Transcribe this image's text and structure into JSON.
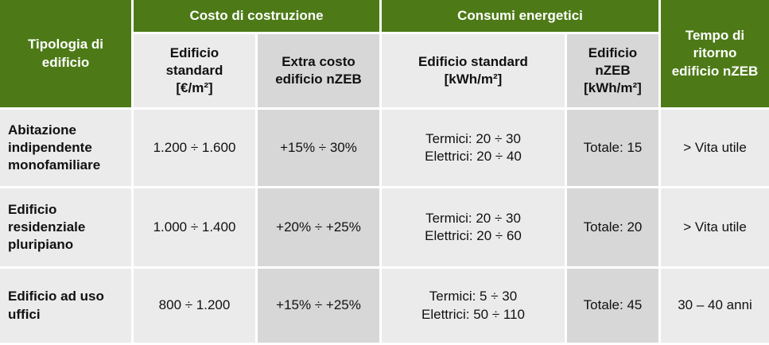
{
  "table": {
    "header_group": {
      "typology": "Tipologia di\nedificio",
      "construction_cost": "Costo di costruzione",
      "energy_consumption": "Consumi energetici",
      "payback": "Tempo di\nritorno\nedificio nZEB"
    },
    "header_sub": {
      "standard_building": "Edificio\nstandard\n[€/m²]",
      "extra_cost_nzeb": "Extra costo\nedificio nZEB",
      "standard_consumption": "Edificio standard\n[kWh/m²]",
      "nzeb_consumption": "Edificio\nnZEB\n[kWh/m²]"
    },
    "rows": [
      {
        "type": "Abitazione\nindipendente\nmonofamiliare",
        "cost": "1.200 ÷ 1.600",
        "extra": "+15% ÷ 30%",
        "consumption": "Termici: 20 ÷ 30\nElettrici: 20 ÷ 40",
        "nzeb": "Totale: 15",
        "payback": "> Vita utile"
      },
      {
        "type": "Edificio\nresidenziale\npluripiano",
        "cost": "1.000 ÷ 1.400",
        "extra": "+20% ÷ +25%",
        "consumption": "Termici: 20 ÷ 30\nElettrici: 20 ÷ 60",
        "nzeb": "Totale: 20",
        "payback": "> Vita utile"
      },
      {
        "type": "Edificio ad uso\nuffici",
        "cost": "800 ÷ 1.200",
        "extra": "+15% ÷ +25%",
        "consumption": "Termici: 5 ÷ 30\nElettrici: 50 ÷ 110",
        "nzeb": "Totale: 45",
        "payback": "30 – 40 anni"
      }
    ],
    "colors": {
      "header_green": "#4d7a17",
      "cell_light": "#ebebeb",
      "cell_dark": "#d7d7d7"
    }
  }
}
